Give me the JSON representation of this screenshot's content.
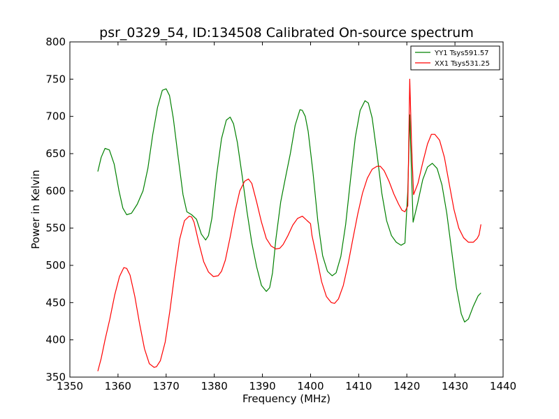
{
  "chart_data": {
    "type": "line",
    "title": "psr_0329_54, ID:134508 Calibrated On-source spectrum",
    "xlabel": "Frequency (MHz)",
    "ylabel": "Power in Kelvin",
    "xlim": [
      1350,
      1440
    ],
    "ylim": [
      350,
      800
    ],
    "xticks": [
      1350,
      1360,
      1370,
      1380,
      1390,
      1400,
      1410,
      1420,
      1430,
      1440
    ],
    "yticks": [
      350,
      400,
      450,
      500,
      550,
      600,
      650,
      700,
      750,
      800
    ],
    "grid": false,
    "legend_position": "top-right",
    "series": [
      {
        "name": "YY1 Tsys591.57",
        "color": "#008000",
        "x": [
          1355.8,
          1356.5,
          1357.3,
          1358.2,
          1359.2,
          1360.2,
          1361.0,
          1361.8,
          1362.8,
          1364.0,
          1365.2,
          1366.2,
          1367.2,
          1368.2,
          1369.2,
          1370.0,
          1370.7,
          1371.5,
          1372.5,
          1373.5,
          1374.3,
          1375.3,
          1376.3,
          1377.3,
          1378.2,
          1378.8,
          1379.5,
          1380.5,
          1381.5,
          1382.5,
          1383.3,
          1384.0,
          1384.8,
          1385.8,
          1386.8,
          1387.8,
          1388.8,
          1389.8,
          1390.8,
          1391.5,
          1392.1,
          1392.8,
          1393.8,
          1394.8,
          1395.8,
          1396.8,
          1397.8,
          1398.3,
          1398.9,
          1399.5,
          1400.5,
          1401.5,
          1402.5,
          1403.5,
          1404.5,
          1405.3,
          1406.3,
          1407.3,
          1408.3,
          1409.3,
          1410.3,
          1411.3,
          1412.0,
          1412.8,
          1413.8,
          1414.8,
          1415.8,
          1416.8,
          1417.8,
          1418.8,
          1419.6,
          1420.2,
          1420.6,
          1420.9,
          1421.3,
          1422.3,
          1423.3,
          1424.3,
          1425.3,
          1426.3,
          1427.3,
          1428.3,
          1429.3,
          1430.3,
          1431.3,
          1432.0,
          1432.8,
          1433.8,
          1434.8,
          1435.4
        ],
        "values": [
          626,
          645,
          657,
          655,
          636,
          600,
          577,
          568,
          570,
          582,
          600,
          630,
          675,
          712,
          735,
          737,
          728,
          697,
          645,
          595,
          572,
          568,
          562,
          542,
          534,
          540,
          563,
          622,
          670,
          695,
          699,
          690,
          665,
          620,
          572,
          530,
          498,
          473,
          465,
          470,
          490,
          535,
          585,
          618,
          650,
          688,
          709,
          708,
          700,
          680,
          625,
          560,
          513,
          492,
          486,
          490,
          512,
          555,
          615,
          672,
          708,
          721,
          718,
          698,
          650,
          597,
          560,
          540,
          531,
          527,
          530,
          600,
          702,
          640,
          558,
          585,
          615,
          632,
          637,
          630,
          608,
          570,
          520,
          470,
          435,
          424,
          428,
          445,
          459,
          463
        ]
      },
      {
        "name": "XX1 Tsys531.25",
        "color": "#ff0000",
        "x": [
          1355.8,
          1356.5,
          1357.3,
          1358.3,
          1359.3,
          1360.3,
          1361.2,
          1361.8,
          1362.5,
          1363.5,
          1364.5,
          1365.5,
          1366.5,
          1367.5,
          1368.0,
          1368.8,
          1369.8,
          1370.8,
          1371.8,
          1372.8,
          1373.8,
          1374.8,
          1375.3,
          1375.8,
          1376.8,
          1377.8,
          1378.8,
          1379.8,
          1380.8,
          1381.5,
          1382.3,
          1383.3,
          1384.3,
          1385.3,
          1386.3,
          1387.1,
          1387.8,
          1388.8,
          1389.8,
          1390.8,
          1391.8,
          1392.8,
          1393.6,
          1394.3,
          1395.3,
          1396.3,
          1397.3,
          1398.3,
          1398.8,
          1399.3,
          1400.0,
          1400.3,
          1401.3,
          1402.3,
          1403.3,
          1404.3,
          1405.0,
          1405.8,
          1406.8,
          1407.8,
          1408.8,
          1409.8,
          1410.8,
          1411.8,
          1412.8,
          1413.8,
          1414.5,
          1415.3,
          1416.3,
          1417.3,
          1418.3,
          1419.0,
          1419.6,
          1420.2,
          1420.6,
          1421.0,
          1421.4,
          1422.3,
          1423.3,
          1424.3,
          1425.1,
          1425.8,
          1426.8,
          1427.8,
          1428.8,
          1429.8,
          1430.8,
          1431.8,
          1432.8,
          1433.8,
          1434.6,
          1435.0,
          1435.4
        ],
        "values": [
          358,
          375,
          400,
          428,
          460,
          485,
          497,
          496,
          487,
          458,
          421,
          388,
          368,
          363,
          364,
          372,
          397,
          440,
          490,
          535,
          560,
          566,
          565,
          558,
          530,
          505,
          491,
          485,
          486,
          492,
          507,
          538,
          572,
          600,
          613,
          616,
          610,
          585,
          558,
          536,
          526,
          522,
          523,
          528,
          540,
          554,
          563,
          566,
          563,
          560,
          556,
          540,
          510,
          478,
          458,
          450,
          449,
          455,
          473,
          502,
          536,
          569,
          597,
          617,
          629,
          633,
          633,
          627,
          613,
          596,
          582,
          574,
          572,
          580,
          750,
          660,
          595,
          610,
          638,
          663,
          676,
          676,
          668,
          645,
          610,
          575,
          550,
          537,
          531,
          531,
          536,
          541,
          555
        ]
      }
    ]
  }
}
